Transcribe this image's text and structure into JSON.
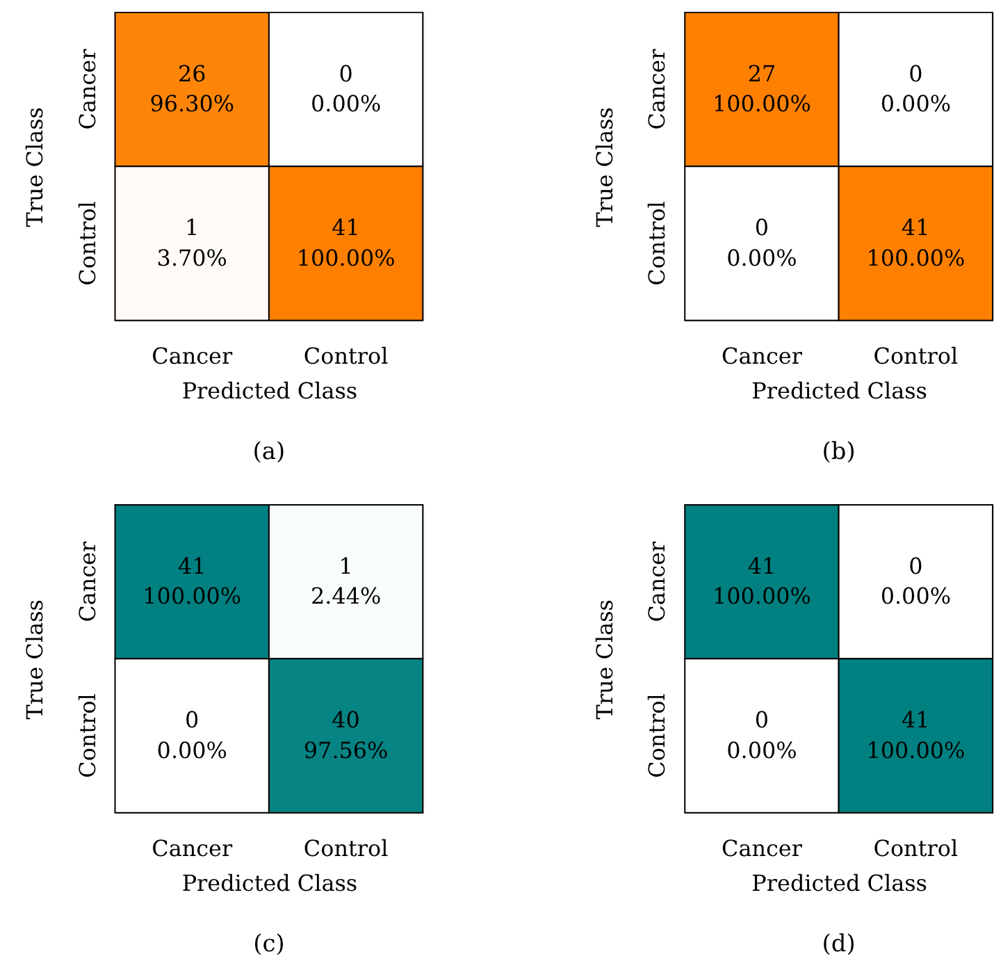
{
  "chart_data": [
    {
      "type": "heatmap",
      "title": "(a)",
      "xlabel": "Predicted Class",
      "ylabel": "True Class",
      "categories": [
        "Cancer",
        "Control"
      ],
      "y_categories": [
        "Cancer",
        "Control"
      ],
      "cells": [
        [
          96.3,
          0.0
        ],
        [
          3.7,
          100.0
        ]
      ],
      "cell_labels": [
        [
          "96.30%",
          "0.00%"
        ],
        [
          "3.70%",
          "100.00%"
        ]
      ],
      "color": "#ff8000",
      "annotations": [
        "26",
        "0",
        "1",
        "41"
      ]
    },
    {
      "type": "heatmap",
      "title": "(b)",
      "xlabel": "Predicted Class",
      "ylabel": "True Class",
      "categories": [
        "Cancer",
        "Control"
      ],
      "y_categories": [
        "Cancer",
        "Control"
      ],
      "cells": [
        [
          100.0,
          0.0
        ],
        [
          0.0,
          100.0
        ]
      ],
      "cell_labels": [
        [
          "100.00%",
          "0.00%"
        ],
        [
          "0.00%",
          "100.00%"
        ]
      ],
      "color": "#ff8000",
      "annotations": [
        "27",
        "0",
        "0",
        "41"
      ]
    },
    {
      "type": "heatmap",
      "title": "(c)",
      "xlabel": "Predicted Class",
      "ylabel": "True Class",
      "categories": [
        "Cancer",
        "Control"
      ],
      "y_categories": [
        "Cancer",
        "Control"
      ],
      "cells": [
        [
          100.0,
          2.44
        ],
        [
          0.0,
          97.56
        ]
      ],
      "cell_labels": [
        [
          "100.00%",
          "2.44%"
        ],
        [
          "0.00%",
          "97.56%"
        ]
      ],
      "color": "#008080",
      "annotations": [
        "41",
        "1",
        "0",
        "40"
      ]
    },
    {
      "type": "heatmap",
      "title": "(d)",
      "xlabel": "Predicted Class",
      "ylabel": "True Class",
      "categories": [
        "Cancer",
        "Control"
      ],
      "y_categories": [
        "Cancer",
        "Control"
      ],
      "cells": [
        [
          100.0,
          0.0
        ],
        [
          0.0,
          100.0
        ]
      ],
      "cell_labels": [
        [
          "100.00%",
          "0.00%"
        ],
        [
          "0.00%",
          "100.00%"
        ]
      ],
      "color": "#008080",
      "annotations": [
        "41",
        "0",
        "0",
        "41"
      ]
    }
  ]
}
